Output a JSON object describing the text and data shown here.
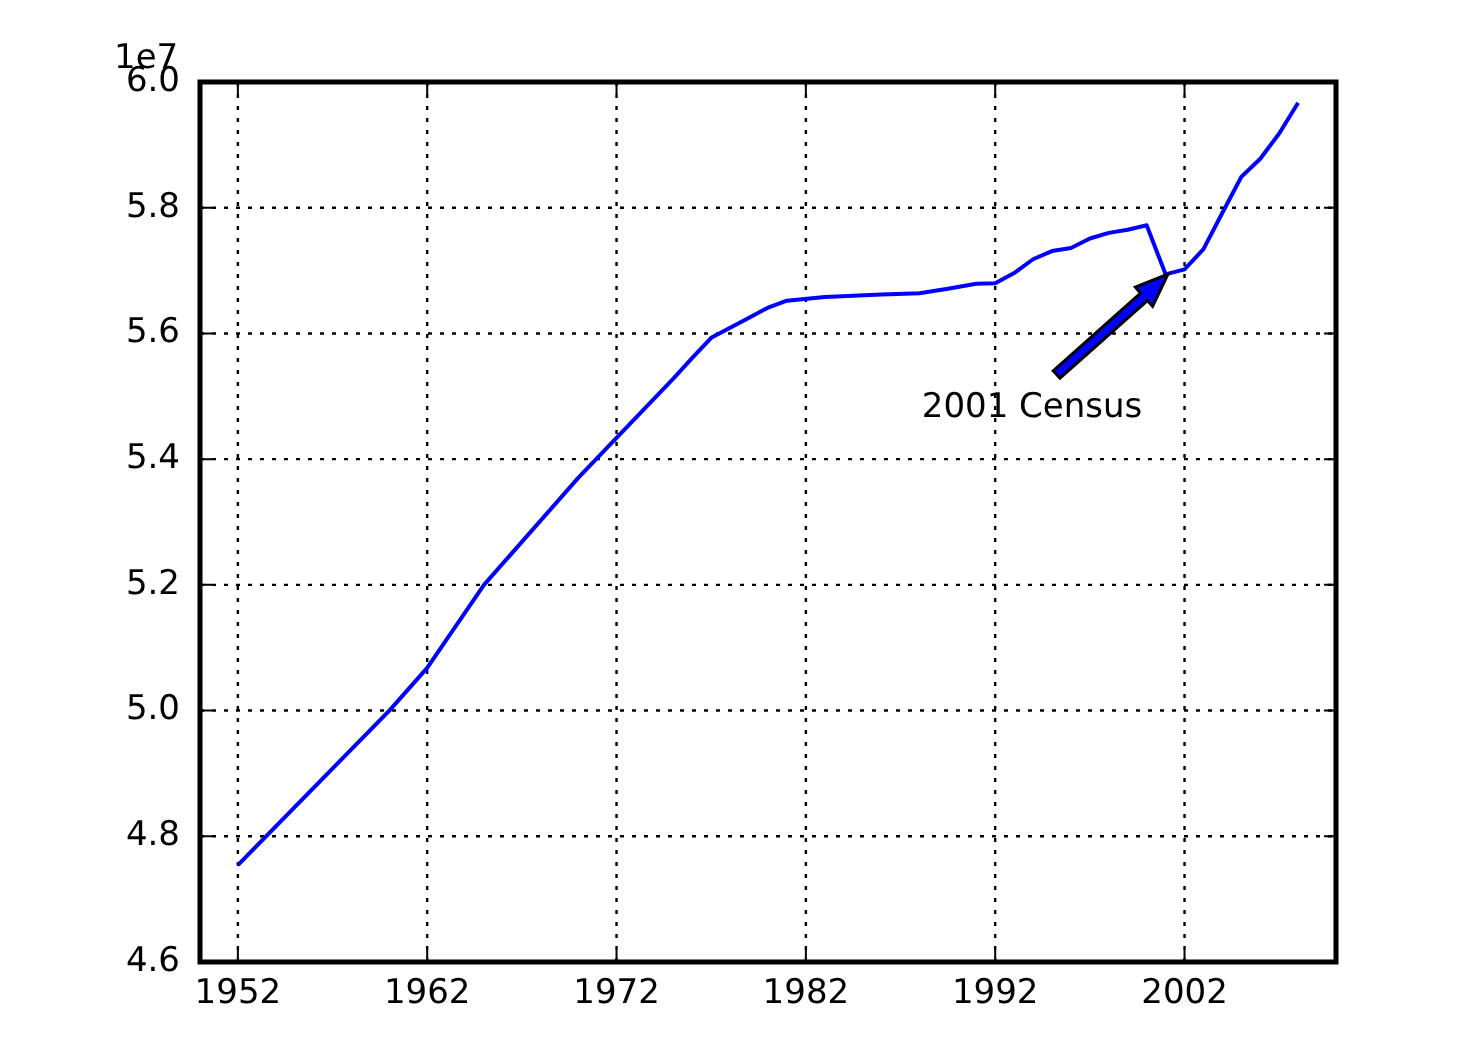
{
  "chart_data": {
    "type": "line",
    "x": [
      1952,
      1960,
      1962,
      1965,
      1970,
      1972,
      1975,
      1976,
      1977,
      1979,
      1980,
      1981,
      1983,
      1986,
      1988,
      1989.5,
      1991,
      1992,
      1993,
      1994,
      1995,
      1996,
      1997,
      1998,
      1999,
      2000,
      2001,
      2002,
      2003,
      2004,
      2005,
      2006,
      2007,
      2008
    ],
    "series": [
      {
        "color": "#0000ff",
        "values": [
          4.754,
          5.0,
          5.068,
          5.2,
          5.371,
          5.434,
          5.528,
          5.561,
          5.593,
          5.625,
          5.641,
          5.652,
          5.658,
          5.662,
          5.664,
          5.671,
          5.679,
          5.68,
          5.696,
          5.718,
          5.731,
          5.736,
          5.751,
          5.76,
          5.765,
          5.772,
          5.694,
          5.702,
          5.734,
          5.792,
          5.849,
          5.878,
          5.918,
          5.967
        ]
      }
    ],
    "xlim": [
      1950,
      2010
    ],
    "xticks": [
      1952,
      1962,
      1972,
      1982,
      1992,
      2002
    ],
    "ylim": [
      4.6,
      6.0
    ],
    "yticks": [
      {
        "value": 4.6,
        "label": "4.6"
      },
      {
        "value": 4.8,
        "label": "4.8"
      },
      {
        "value": 5.0,
        "label": "5.0"
      },
      {
        "value": 5.2,
        "label": "5.2"
      },
      {
        "value": 5.4,
        "label": "5.4"
      },
      {
        "value": 5.6,
        "label": "5.6"
      },
      {
        "value": 5.8,
        "label": "5.8"
      },
      {
        "value": 6.0,
        "label": "6.0"
      }
    ],
    "ylabel": "1e7",
    "annotations": [
      "2001 Census"
    ],
    "grid": true,
    "legend": false,
    "marker": "none",
    "line_style": "solid"
  }
}
